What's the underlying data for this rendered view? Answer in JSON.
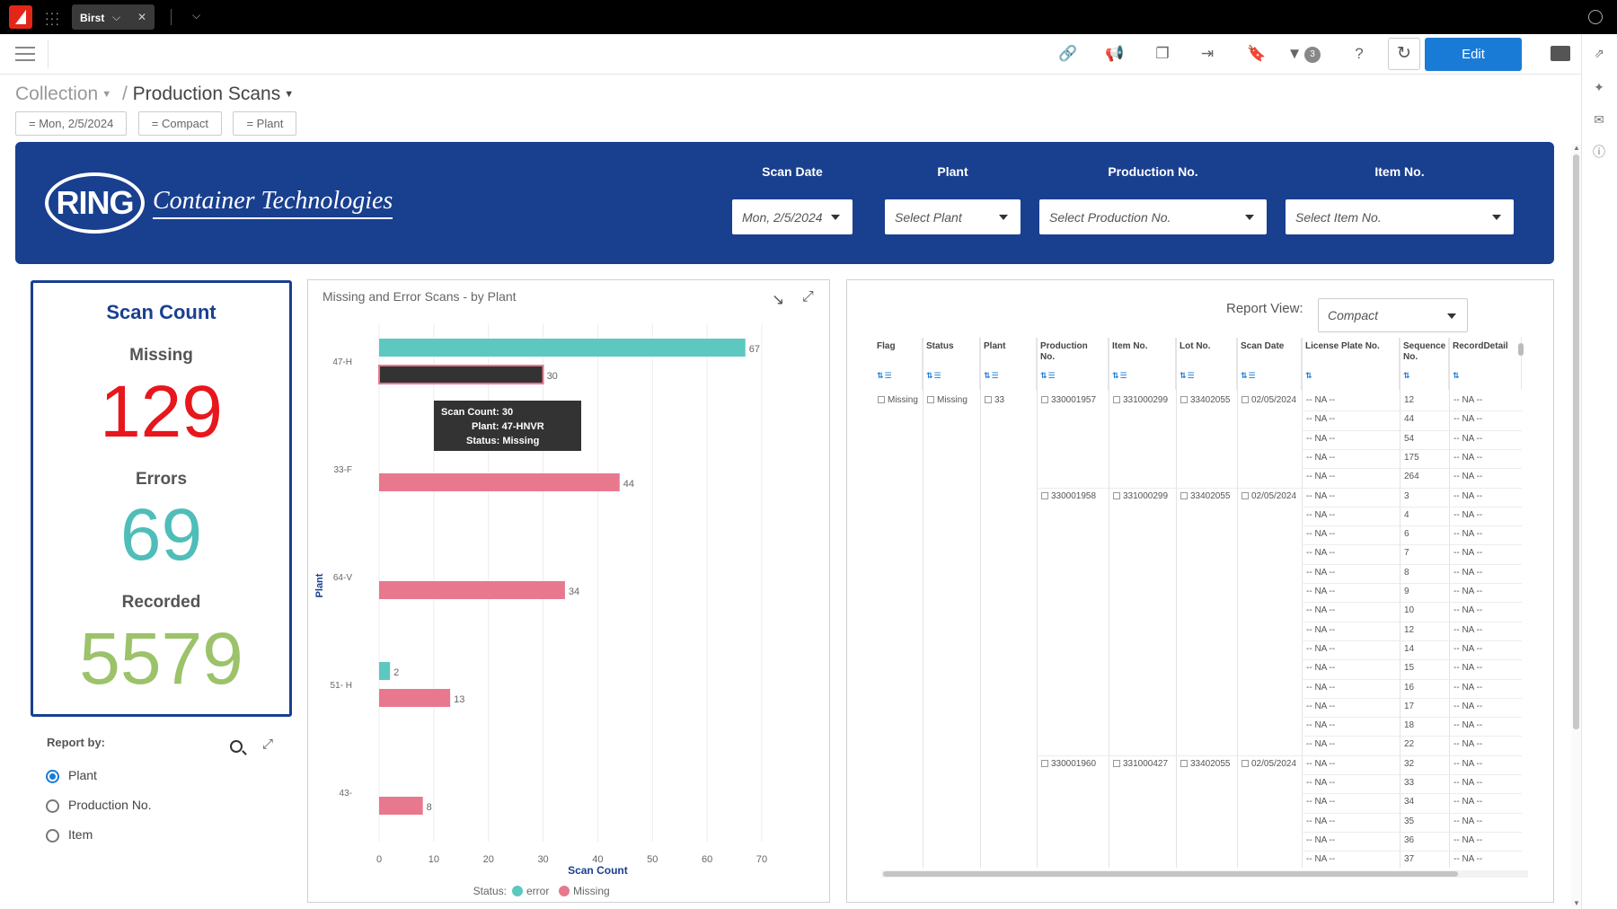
{
  "window": {
    "tab_label": "Birst",
    "tab_chevron": "⌵",
    "tab_close": "✕",
    "more_tabs": "⌵"
  },
  "toolbar": {
    "filter_count": "3",
    "edit_label": "Edit",
    "icons": [
      "link-icon",
      "megaphone-icon",
      "copy-icon",
      "export-icon",
      "bookmark-icon",
      "filter-icon",
      "help-icon",
      "refresh-icon",
      "folder-icon"
    ]
  },
  "breadcrumb": {
    "collection": "Collection",
    "separator": "/",
    "current": "Production Scans"
  },
  "chips": [
    "= Mon, 2/5/2024",
    "= Compact",
    "= Plant"
  ],
  "banner": {
    "logo_text": "RING",
    "company": "Container Technologies",
    "filters": [
      {
        "label": "Scan Date",
        "value": "Mon, 2/5/2024"
      },
      {
        "label": "Plant",
        "value": "Select Plant"
      },
      {
        "label": "Production No.",
        "value": "Select Production No."
      },
      {
        "label": "Item No.",
        "value": "Select Item No."
      }
    ]
  },
  "scan_card": {
    "title": "Scan Count",
    "missing_label": "Missing",
    "missing_value": "129",
    "errors_label": "Errors",
    "errors_value": "69",
    "recorded_label": "Recorded",
    "recorded_value": "5579"
  },
  "colors": {
    "brand": "#193f8f",
    "error": "#5cc8c0",
    "missing": "#e8788e",
    "missing_value": "#e8161d",
    "errors_value": "#4fbdb8",
    "recorded_value": "#9cc26a",
    "accent": "#1a7bd6"
  },
  "report_by": {
    "label": "Report by:",
    "options": [
      {
        "label": "Plant",
        "selected": true
      },
      {
        "label": "Production No.",
        "selected": false
      },
      {
        "label": "Item",
        "selected": false
      }
    ]
  },
  "chart_data": {
    "type": "bar",
    "orientation": "horizontal",
    "title": "Missing and Error Scans - by Plant",
    "xlabel": "Scan Count",
    "ylabel": "Plant",
    "xlim": [
      0,
      70
    ],
    "xticks": [
      0,
      10,
      20,
      30,
      40,
      50,
      60,
      70
    ],
    "grid": true,
    "legend_title": "Status:",
    "legend_position": "bottom",
    "categories": [
      "47-H",
      "33-F",
      "64-V",
      "51- H",
      "43-"
    ],
    "series": [
      {
        "name": "error",
        "values": [
          67,
          null,
          null,
          2,
          null
        ]
      },
      {
        "name": "Missing",
        "values": [
          30,
          44,
          34,
          13,
          8
        ]
      }
    ]
  },
  "tooltip": {
    "line1": "Scan Count: 30",
    "line2": "Plant: 47-HNVR",
    "line3": "Status: Missing"
  },
  "report_view": {
    "label": "Report View:",
    "value": "Compact"
  },
  "table": {
    "columns": [
      "Flag",
      "Status",
      "Plant",
      "Production No.",
      "Item No.",
      "Lot No.",
      "Scan Date",
      "License Plate No.",
      "Sequence No.",
      "RecordDetail"
    ],
    "groups": [
      {
        "flag": "Missing",
        "status": "Missing",
        "plant": "33",
        "production": "330001957",
        "item": "331000299",
        "lot": "33402055",
        "date": "02/05/2024",
        "row_start": 0,
        "row_count": 5
      },
      {
        "flag": "",
        "status": "",
        "plant": "",
        "production": "330001958",
        "item": "331000299",
        "lot": "33402055",
        "date": "02/05/2024",
        "row_start": 5,
        "row_count": 14
      },
      {
        "flag": "",
        "status": "",
        "plant": "",
        "production": "330001960",
        "item": "331000427",
        "lot": "33402055",
        "date": "02/05/2024",
        "row_start": 19,
        "row_count": 6
      }
    ],
    "na_text": "-- NA --",
    "sequence": [
      "12",
      "44",
      "54",
      "175",
      "264",
      "3",
      "4",
      "6",
      "7",
      "8",
      "9",
      "10",
      "12",
      "14",
      "15",
      "16",
      "17",
      "18",
      "22",
      "32",
      "33",
      "34",
      "35",
      "36",
      "37"
    ]
  }
}
